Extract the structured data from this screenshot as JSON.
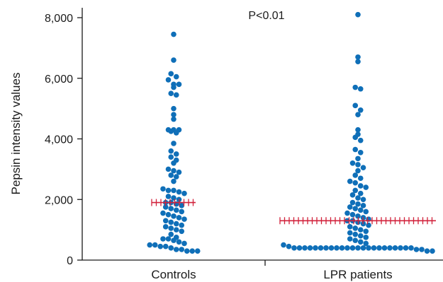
{
  "chart_data": {
    "type": "scatter",
    "subtype": "dot-plot",
    "ylabel": "Pepsin intensity values",
    "xlabel": "",
    "ylim": [
      0,
      8000
    ],
    "yticks": [
      0,
      2000,
      4000,
      6000,
      8000
    ],
    "ytick_labels": [
      "0",
      "2,000",
      "4,000",
      "6,000",
      "8,000"
    ],
    "categories": [
      "Controls",
      "LPR patients"
    ],
    "annotation": "P<0.01",
    "grid": false,
    "colors": {
      "points": "#0f6fb8",
      "median": "#d1213a",
      "axis": "#1a1a1a"
    },
    "series": [
      {
        "category": "Controls",
        "median": 1900,
        "values": [
          7450,
          6600,
          6150,
          6050,
          5950,
          5800,
          5800,
          5700,
          5500,
          5450,
          5000,
          4800,
          4650,
          4300,
          4300,
          4300,
          4250,
          4200,
          3850,
          3600,
          3500,
          3400,
          3300,
          3200,
          3000,
          2950,
          2900,
          2800,
          2750,
          2600,
          2350,
          2300,
          2300,
          2250,
          2200,
          2100,
          2050,
          2000,
          1900,
          1900,
          1850,
          1800,
          1750,
          1700,
          1650,
          1600,
          1550,
          1500,
          1450,
          1400,
          1350,
          1300,
          1250,
          1200,
          1150,
          1100,
          1050,
          1000,
          950,
          850,
          750,
          700,
          700,
          650,
          600,
          550,
          500,
          500,
          450,
          450,
          400,
          350,
          350,
          300,
          300,
          300
        ]
      },
      {
        "category": "LPR patients",
        "median": 1300,
        "values": [
          8100,
          6700,
          6550,
          5700,
          5650,
          5100,
          4950,
          4800,
          4300,
          4150,
          4050,
          3950,
          3650,
          3550,
          3350,
          3200,
          3150,
          3050,
          2950,
          2800,
          2700,
          2600,
          2550,
          2450,
          2400,
          2300,
          2200,
          2150,
          2050,
          2000,
          1900,
          1850,
          1800,
          1750,
          1700,
          1650,
          1600,
          1550,
          1500,
          1450,
          1400,
          1350,
          1300,
          1300,
          1250,
          1200,
          1150,
          1100,
          1050,
          1000,
          950,
          900,
          850,
          800,
          750,
          700,
          650,
          600,
          550,
          500,
          450,
          400,
          400,
          400,
          400,
          400,
          400,
          400,
          400,
          400,
          400,
          400,
          400,
          400,
          400,
          400,
          400,
          400,
          400,
          400,
          400,
          400,
          400,
          400,
          350,
          350,
          300,
          300
        ]
      }
    ]
  }
}
